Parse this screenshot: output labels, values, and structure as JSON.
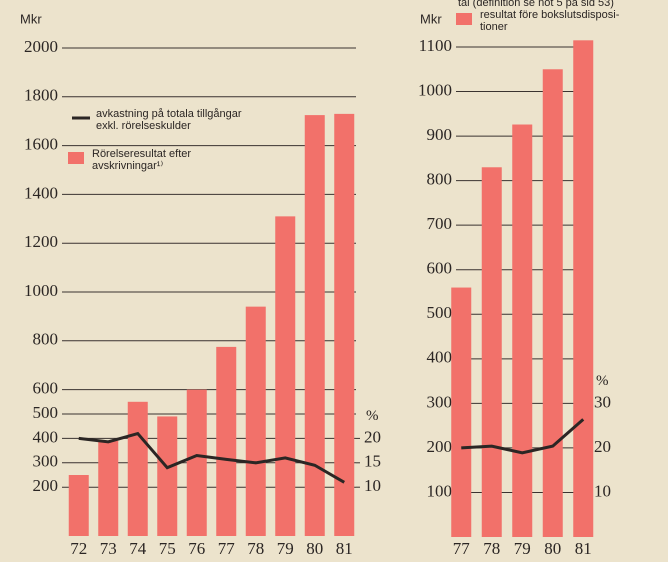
{
  "chart_data": [
    {
      "type": "bar",
      "y_label": "Mkr",
      "y2_label": "%",
      "categories": [
        "72",
        "73",
        "74",
        "75",
        "76",
        "77",
        "78",
        "79",
        "80",
        "81"
      ],
      "series": [
        {
          "name": [
            "Rörelseresultat efter",
            "avskrivningar¹⁾"
          ],
          "color": "#f2716a",
          "values": [
            250,
            390,
            550,
            490,
            600,
            775,
            940,
            1310,
            1725,
            1730
          ]
        },
        {
          "name": [
            "avkastning på totala tillgångar",
            "exkl. rörelseskulder"
          ],
          "color": "#2b2624",
          "axis": "y2",
          "values": [
            20,
            19.3,
            21,
            14,
            16.5,
            15.7,
            15,
            16,
            14.5,
            11
          ]
        }
      ],
      "ylim": [
        0,
        2000
      ],
      "yticks": [
        200,
        300,
        400,
        500,
        600,
        800,
        1000,
        1200,
        1400,
        1600,
        1800,
        2000
      ],
      "y2lim": [
        0,
        100
      ],
      "y2ticks": [
        10,
        15,
        20
      ],
      "grid": true
    },
    {
      "type": "bar",
      "subtitle": "tal (definition se not 5 på sid 53)",
      "y_label": "Mkr",
      "y2_label": "%",
      "categories": [
        "77",
        "78",
        "79",
        "80",
        "81"
      ],
      "series": [
        {
          "name": [
            "resultat före bokslutsdisposi-",
            "tioner"
          ],
          "color": "#f2716a",
          "values": [
            560,
            830,
            926,
            1050,
            1115
          ]
        },
        {
          "name": null,
          "color": "#2b2624",
          "axis": "y2",
          "values": [
            20,
            20.4,
            18.9,
            20.4,
            26.4
          ]
        }
      ],
      "ylim": [
        0,
        1100
      ],
      "yticks": [
        100,
        200,
        300,
        400,
        500,
        600,
        700,
        800,
        900,
        1000,
        1100
      ],
      "y2lim": [
        0,
        110
      ],
      "y2ticks": [
        10,
        20,
        30
      ],
      "grid": true
    }
  ]
}
